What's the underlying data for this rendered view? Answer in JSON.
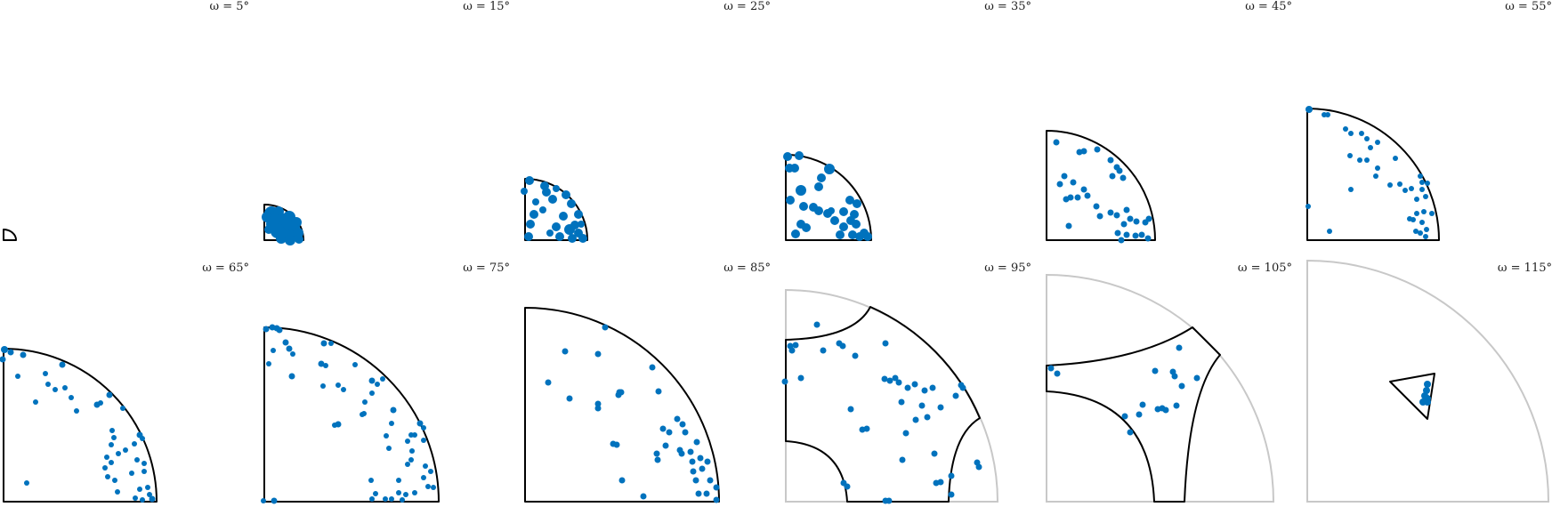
{
  "figure": {
    "panels": [
      {
        "title": "ω = 5°",
        "omega": 5
      },
      {
        "title": "ω = 15°",
        "omega": 15
      },
      {
        "title": "ω = 25°",
        "omega": 25
      },
      {
        "title": "ω = 35°",
        "omega": 35
      },
      {
        "title": "ω = 45°",
        "omega": 45
      },
      {
        "title": "ω = 55°",
        "omega": 55
      },
      {
        "title": "ω = 65°",
        "omega": 65
      },
      {
        "title": "ω = 75°",
        "omega": 75
      },
      {
        "title": "ω = 85°",
        "omega": 85
      },
      {
        "title": "ω = 95°",
        "omega": 95
      },
      {
        "title": "ω = 105°",
        "omega": 105
      },
      {
        "title": "ω = 115°",
        "omega": 115
      }
    ],
    "colors": {
      "points": "#0072bd",
      "region_outline": "#000000",
      "outer_boundary": "#c8c8c8"
    }
  }
}
